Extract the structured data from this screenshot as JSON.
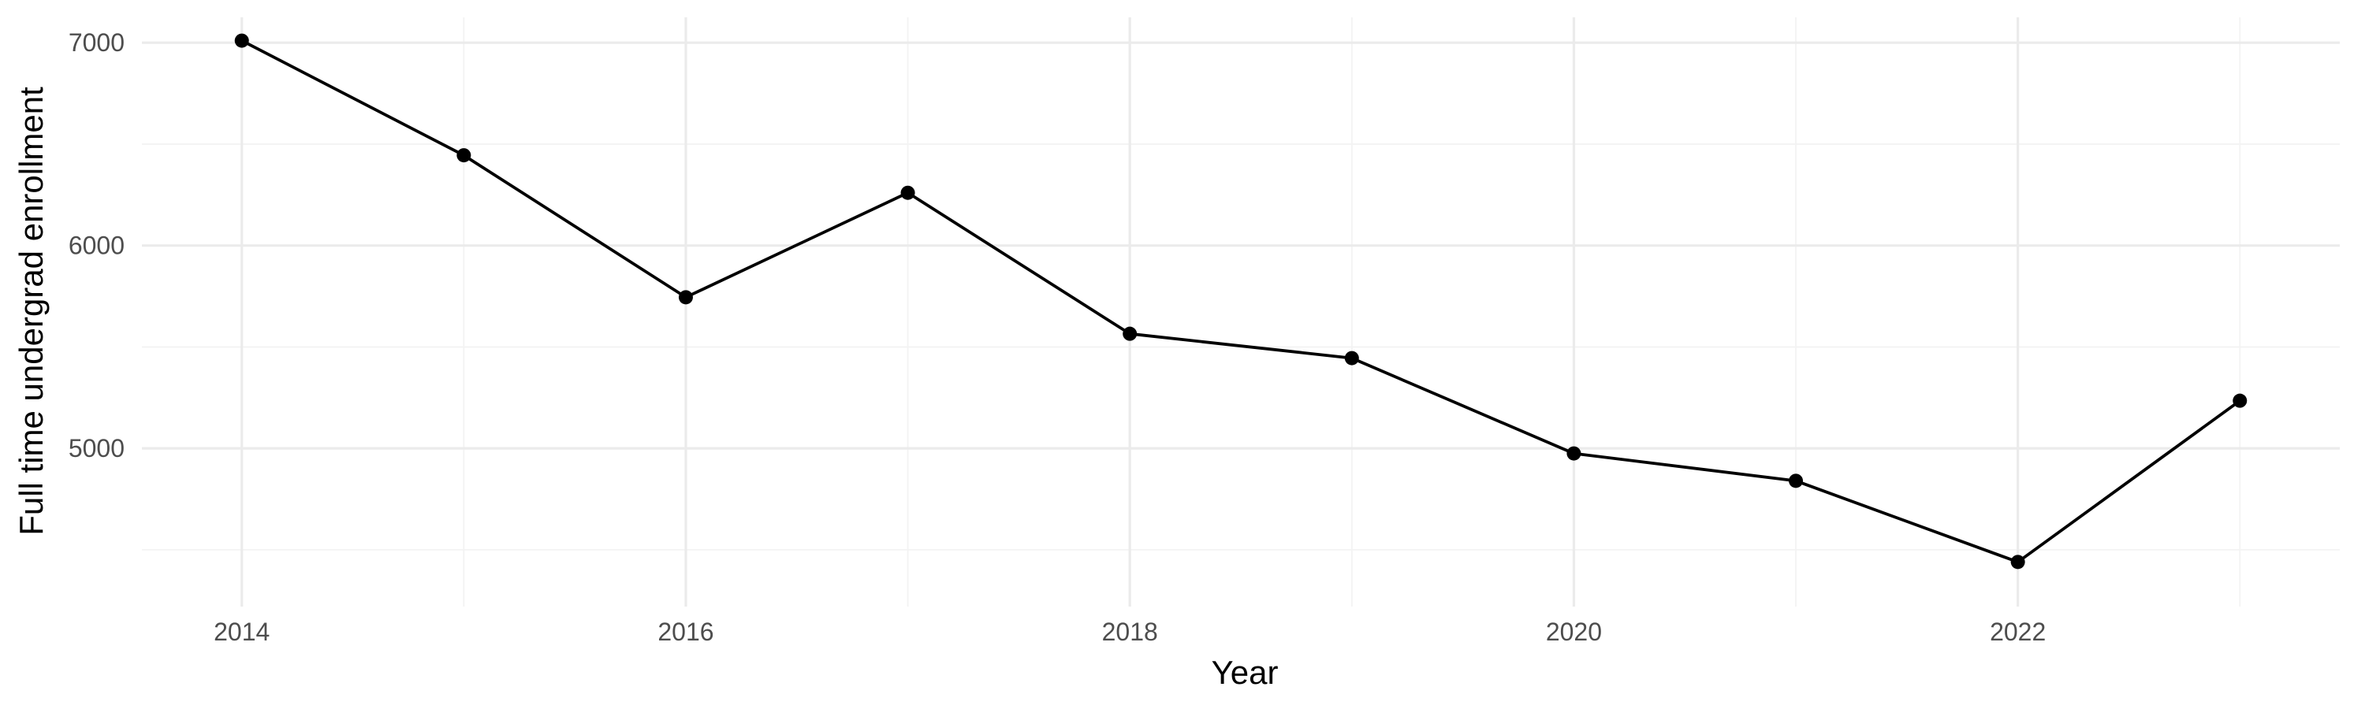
{
  "chart_data": {
    "type": "line",
    "title": "",
    "xlabel": "Year",
    "ylabel": "Full time undergrad enrollment",
    "x": [
      2014,
      2015,
      2016,
      2017,
      2018,
      2019,
      2020,
      2021,
      2022,
      2023
    ],
    "series": [
      {
        "values": [
          7010,
          6445,
          5745,
          6260,
          5565,
          5445,
          4975,
          4840,
          4440,
          5235
        ]
      }
    ],
    "xlim": [
      2013.55,
      2023.45
    ],
    "ylim": [
      4220,
      7125
    ],
    "x_ticks": [
      2014,
      2016,
      2018,
      2020,
      2022
    ],
    "x_tick_labels": [
      "2014",
      "2016",
      "2018",
      "2020",
      "2022"
    ],
    "x_minor_ticks": [
      2015,
      2017,
      2019,
      2021,
      2023
    ],
    "y_ticks": [
      5000,
      6000,
      7000
    ],
    "y_tick_labels": [
      "5000",
      "6000",
      "7000"
    ],
    "y_minor_ticks": [
      4500,
      5500,
      6500
    ],
    "grid": true,
    "legend": "none",
    "colors": {
      "line": "#000000",
      "grid": "#ebebeb",
      "tick_text": "#4d4d4d"
    }
  }
}
